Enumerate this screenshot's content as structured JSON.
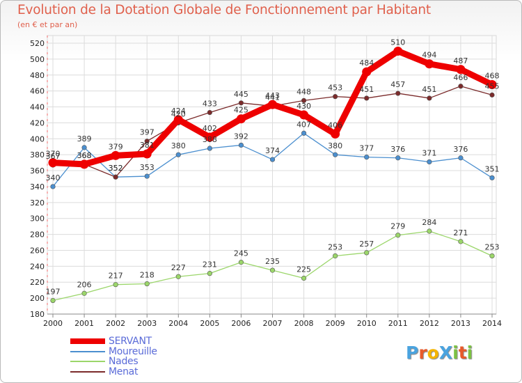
{
  "header": {
    "title": "Evolution de la Dotation Globale de Fonctionnement par Habitant",
    "subtitle": "(en € et par an)"
  },
  "logo": {
    "text": "ProXiti",
    "colors": [
      "#4aa3df",
      "#e85a2a",
      "#f4b400",
      "#4aa3df",
      "#7cc242",
      "#e85a2a",
      "#7cc242"
    ]
  },
  "chart_data": {
    "type": "line",
    "x": [
      "2000",
      "2001",
      "2002",
      "2003",
      "2004",
      "2005",
      "2006",
      "2007",
      "2008",
      "2009",
      "2010",
      "2011",
      "2012",
      "2013",
      "2014"
    ],
    "ylim": [
      180,
      520
    ],
    "yticks": [
      180,
      200,
      220,
      240,
      260,
      280,
      300,
      320,
      340,
      360,
      380,
      400,
      420,
      440,
      460,
      480,
      500,
      520
    ],
    "grid": true,
    "legend_position": "bottom-left",
    "series": [
      {
        "name": "Moureuille",
        "color": "#4b8fcf",
        "values": [
          340,
          389,
          352,
          353,
          380,
          388,
          392,
          374,
          407,
          380,
          377,
          376,
          371,
          376,
          351
        ]
      },
      {
        "name": "Nades",
        "color": "#9bd66a",
        "values": [
          197,
          206,
          217,
          218,
          227,
          231,
          245,
          235,
          225,
          253,
          257,
          279,
          284,
          271,
          253
        ]
      },
      {
        "name": "Menat",
        "color": "#7b2b2b",
        "values": [
          367,
          368,
          352,
          397,
          420,
          433,
          445,
          441,
          448,
          453,
          451,
          457,
          451,
          466,
          455
        ]
      },
      {
        "name": "SERVANT",
        "color": "#ee0000",
        "values": [
          370,
          368,
          379,
          381,
          424,
          402,
          425,
          443,
          430,
          406,
          484,
          510,
          494,
          487,
          468
        ]
      }
    ],
    "legend_order": [
      "SERVANT",
      "Moureuille",
      "Nades",
      "Menat"
    ]
  }
}
